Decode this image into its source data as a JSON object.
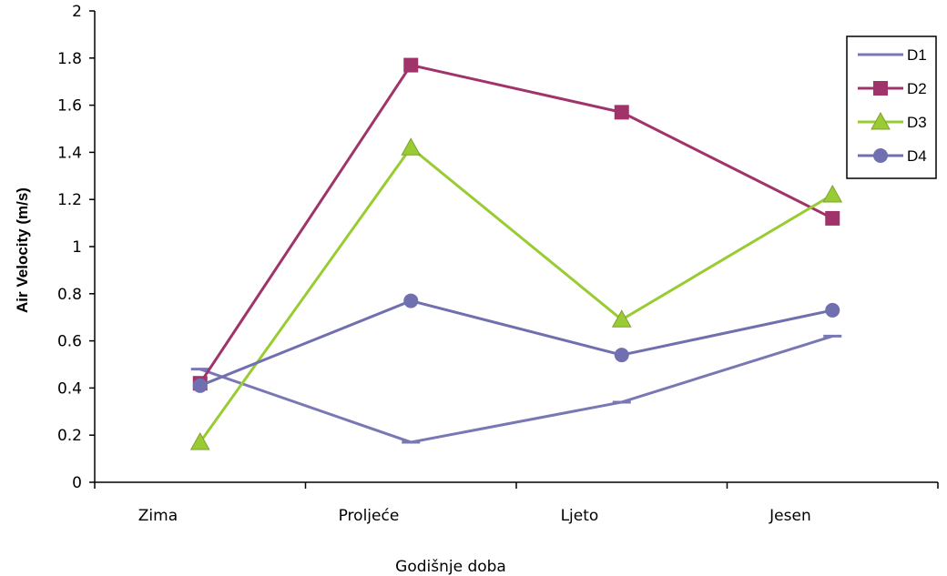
{
  "chart_data": {
    "type": "line",
    "categories": [
      "Zima",
      "Proljeće",
      "Ljeto",
      "Jesen"
    ],
    "xlabel": "Godišnje doba",
    "ylabel": "Air Velocity (m/s)",
    "ylim": [
      0,
      2
    ],
    "yticks": [
      0,
      0.2,
      0.4,
      0.6,
      0.8,
      1,
      1.2,
      1.4,
      1.6,
      1.8,
      2
    ],
    "ytick_labels": [
      "0",
      "0.2",
      "0.4",
      "0.6",
      "0.8",
      "1",
      "1.2",
      "1.4",
      "1.6",
      "1.8",
      "2"
    ],
    "grid": false,
    "legend_position": "top-right",
    "series": [
      {
        "name": "D1",
        "values": [
          0.48,
          0.17,
          0.34,
          0.62
        ],
        "color": "#7878b4",
        "marker": "dash"
      },
      {
        "name": "D2",
        "values": [
          0.42,
          1.77,
          1.57,
          1.12
        ],
        "color": "#a0336a",
        "marker": "square"
      },
      {
        "name": "D3",
        "values": [
          0.17,
          1.42,
          0.69,
          1.22
        ],
        "color": "#99cc33",
        "marker": "triangle"
      },
      {
        "name": "D4",
        "values": [
          0.41,
          0.77,
          0.54,
          0.73
        ],
        "color": "#7070b0",
        "marker": "circle"
      }
    ]
  }
}
